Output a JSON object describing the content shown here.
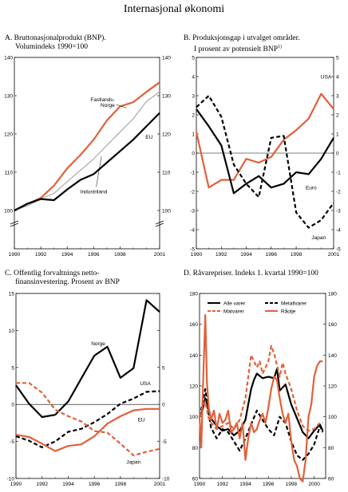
{
  "page_title": "Internasjonal økonomi",
  "chart_data": [
    {
      "id": "A",
      "type": "line",
      "title_lines": [
        "A.  Bruttonasjonalprodukt (BNP).",
        "Volumindeks 1990=100"
      ],
      "x_ticks": [
        "1990",
        "1992",
        "1994",
        "1996",
        "1998",
        "2001"
      ],
      "xlim": [
        1990,
        2001
      ],
      "ylim": [
        90,
        140
      ],
      "y_ticks": [
        "100",
        "110",
        "120",
        "130",
        "140"
      ],
      "axis_break": true,
      "series": [
        {
          "name": "Fastlands-Norge",
          "label_lines": [
            "Fastlands-",
            "Norge"
          ],
          "color": "#e2603a",
          "dash": "none",
          "width": 2.2,
          "x": [
            1990,
            1991,
            1992,
            1993,
            1994,
            1995,
            1996,
            1997,
            1998,
            1999,
            2000,
            2001
          ],
          "y": [
            100,
            101.7,
            103.3,
            106.5,
            111,
            114.5,
            118.5,
            123.5,
            127.2,
            128.3,
            131,
            133.5
          ]
        },
        {
          "name": "Industriland",
          "label_lines": [
            "Industriland"
          ],
          "color": "#999999",
          "dash": "none",
          "width": 1,
          "x": [
            1990,
            1991,
            1992,
            1993,
            1994,
            1995,
            1996,
            1997,
            1998,
            1999,
            2000,
            2001
          ],
          "y": [
            100,
            101.2,
            103,
            104.5,
            107.5,
            110.5,
            113.5,
            117,
            120.5,
            124,
            128.5,
            131
          ]
        },
        {
          "name": "EU",
          "label_lines": [
            "EU"
          ],
          "color": "#000000",
          "dash": "none",
          "width": 2.2,
          "x": [
            1990,
            1991,
            1992,
            1993,
            1994,
            1995,
            1996,
            1997,
            1998,
            1999,
            2000,
            2001
          ],
          "y": [
            100,
            101.8,
            103,
            102.7,
            105.5,
            108,
            109.5,
            112.5,
            115.5,
            118.5,
            122,
            125.5
          ]
        }
      ]
    },
    {
      "id": "B",
      "type": "line",
      "title_lines": [
        "B.  Produksjonsgap i utvalget områder.",
        "I prosent av potensielt BNP"
      ],
      "title_sup": "1)",
      "x_ticks": [
        "1990",
        "1992",
        "1994",
        "1996",
        "1998",
        "2001"
      ],
      "xlim": [
        1990,
        2001
      ],
      "ylim": [
        -5,
        5
      ],
      "y_ticks": [
        "-5",
        "-4",
        "-3",
        "-2",
        "-1",
        "0",
        "1",
        "2",
        "3",
        "4",
        "5"
      ],
      "series": [
        {
          "name": "USA",
          "label_lines": [
            "USA"
          ],
          "color": "#e2603a",
          "dash": "none",
          "width": 2.2,
          "x": [
            1990,
            1991,
            1992,
            1993,
            1994,
            1995,
            1996,
            1997,
            1998,
            1999,
            2000,
            2001
          ],
          "y": [
            1.1,
            -1.8,
            -1.4,
            -1.4,
            -0.3,
            -0.5,
            -0.2,
            0.7,
            1.2,
            1.8,
            3.1,
            2.3
          ]
        },
        {
          "name": "Euro",
          "label_lines": [
            "Euro"
          ],
          "color": "#000000",
          "dash": "none",
          "width": 2.2,
          "x": [
            1990,
            1991,
            1992,
            1993,
            1994,
            1995,
            1996,
            1997,
            1998,
            1999,
            2000,
            2001
          ],
          "y": [
            2.3,
            1.4,
            0.4,
            -2.1,
            -1.6,
            -1.2,
            -1.8,
            -1.6,
            -1.0,
            -1.1,
            -0.3,
            0.8
          ]
        },
        {
          "name": "Japan",
          "label_lines": [
            "Japan"
          ],
          "color": "#000000",
          "dash": "5,3",
          "width": 2.2,
          "x": [
            1990,
            1991,
            1992,
            1993,
            1994,
            1995,
            1996,
            1997,
            1998,
            1999,
            2000,
            2001
          ],
          "y": [
            2.4,
            3.0,
            1.9,
            -0.6,
            -1.6,
            -2.3,
            0.8,
            0.9,
            -3.1,
            -3.9,
            -3.5,
            -2.6
          ]
        }
      ]
    },
    {
      "id": "C",
      "type": "line",
      "title_lines": [
        "C.  Offentlig forvaltnings netto-",
        "finansinvestering. Prosent av BNP"
      ],
      "x_ticks": [
        "1990",
        "1992",
        "1994",
        "1996",
        "1998",
        "2001"
      ],
      "xlim": [
        1990,
        2001
      ],
      "ylim": [
        -10,
        15
      ],
      "y_ticks": [
        "-10",
        "-5",
        "0",
        "5",
        "10",
        "15"
      ],
      "y_ticks_right": [
        "-10",
        "-5",
        "0",
        "5"
      ],
      "series": [
        {
          "name": "Norge",
          "label_lines": [
            "Norge"
          ],
          "color": "#000000",
          "dash": "none",
          "width": 2.2,
          "x": [
            1990,
            1991,
            1992,
            1993,
            1994,
            1995,
            1996,
            1997,
            1998,
            1999,
            2000,
            2001
          ],
          "y": [
            2.6,
            0.1,
            -1.7,
            -1.4,
            0.4,
            3.5,
            6.6,
            7.8,
            3.6,
            4.9,
            14.1,
            12.5
          ]
        },
        {
          "name": "USA",
          "label_lines": [
            "USA"
          ],
          "color": "#000000",
          "dash": "5,3",
          "width": 2.2,
          "x": [
            1990,
            1991,
            1992,
            1993,
            1994,
            1995,
            1996,
            1997,
            1998,
            1999,
            2000,
            2001
          ],
          "y": [
            -4.3,
            -4.9,
            -5.8,
            -5.0,
            -3.7,
            -3.3,
            -2.4,
            -1.3,
            0.1,
            0.8,
            1.7,
            1.8
          ]
        },
        {
          "name": "EU",
          "label_lines": [
            "EU"
          ],
          "color": "#e2603a",
          "dash": "none",
          "width": 2.2,
          "x": [
            1990,
            1991,
            1992,
            1993,
            1994,
            1995,
            1996,
            1997,
            1998,
            1999,
            2000,
            2001
          ],
          "y": [
            -4.1,
            -4.4,
            -5.3,
            -6.3,
            -5.6,
            -5.4,
            -4.3,
            -2.6,
            -1.6,
            -0.8,
            -0.6,
            -0.6
          ]
        },
        {
          "name": "Japan",
          "label_lines": [
            "Japan"
          ],
          "color": "#e2603a",
          "dash": "5,3",
          "width": 2.2,
          "x": [
            1990,
            1991,
            1992,
            1993,
            1994,
            1995,
            1996,
            1997,
            1998,
            1999,
            2000,
            2001
          ],
          "y": [
            2.9,
            2.9,
            1.6,
            -0.7,
            -1.6,
            -2.3,
            -3.6,
            -3.8,
            -5.3,
            -6.9,
            -6.4,
            -6.0
          ]
        }
      ]
    },
    {
      "id": "D",
      "type": "line",
      "title_lines": [
        "D.  Råvarepriser. Indeks 1. kvartal 1990=100"
      ],
      "x_ticks": [
        "1990",
        "1992",
        "1994",
        "1996",
        "1998",
        "2000"
      ],
      "xlim": [
        1990,
        2001
      ],
      "ylim": [
        60,
        180
      ],
      "y_ticks": [
        "60",
        "80",
        "100",
        "120",
        "140",
        "160",
        "180"
      ],
      "legend": [
        "Alle varer",
        "Metallvarer",
        "Matvarer",
        "Råolje"
      ],
      "series": [
        {
          "name": "Alle varer",
          "color": "#000000",
          "dash": "none",
          "width": 2.2,
          "x": [
            1990.0,
            1990.25,
            1990.5,
            1990.75,
            1991.0,
            1991.5,
            1992.0,
            1992.5,
            1993.0,
            1993.5,
            1994.0,
            1994.25,
            1994.5,
            1994.75,
            1995.0,
            1995.5,
            1996.0,
            1996.5,
            1996.75,
            1997.0,
            1997.5,
            1998.0,
            1998.5,
            1999.0,
            1999.5,
            2000.0,
            2000.5,
            2000.75
          ],
          "y": [
            100,
            104,
            112,
            106,
            99,
            94,
            91,
            92,
            88,
            91,
            98,
            108,
            118,
            124,
            128,
            125,
            126,
            125,
            131,
            117,
            121,
            108,
            99,
            90,
            86,
            91,
            95,
            91
          ]
        },
        {
          "name": "Metallvarer",
          "color": "#000000",
          "dash": "5,3",
          "width": 2.2,
          "x": [
            1990.0,
            1990.25,
            1990.5,
            1990.75,
            1991.0,
            1991.5,
            1992.0,
            1992.5,
            1993.0,
            1993.5,
            1994.0,
            1994.5,
            1995.0,
            1995.5,
            1996.0,
            1996.5,
            1997.0,
            1997.5,
            1998.0,
            1998.5,
            1999.0,
            1999.5,
            2000.0,
            2000.5,
            2000.75
          ],
          "y": [
            100,
            108,
            118,
            104,
            93,
            86,
            92,
            90,
            84,
            78,
            86,
            95,
            104,
            98,
            92,
            88,
            100,
            96,
            84,
            75,
            72,
            76,
            82,
            94,
            90
          ]
        },
        {
          "name": "Matvarer",
          "color": "#e2603a",
          "dash": "5,3",
          "width": 2.2,
          "x": [
            1990.0,
            1990.25,
            1990.5,
            1990.75,
            1991.0,
            1991.5,
            1992.0,
            1992.5,
            1993.0,
            1993.5,
            1994.0,
            1994.5,
            1995.0,
            1995.25,
            1995.5,
            1996.0,
            1996.25,
            1996.5,
            1997.0,
            1997.25,
            1997.5,
            1998.0,
            1998.5,
            1999.0,
            1999.5,
            2000.0,
            2000.5,
            2000.75
          ],
          "y": [
            100,
            106,
            110,
            100,
            96,
            92,
            94,
            96,
            92,
            98,
            112,
            140,
            132,
            136,
            128,
            136,
            146,
            141,
            126,
            135,
            128,
            118,
            104,
            94,
            91,
            92,
            96,
            96
          ]
        },
        {
          "name": "Råolje",
          "color": "#e2603a",
          "dash": "none",
          "width": 2.2,
          "x": [
            1990.0,
            1990.15,
            1990.3,
            1990.5,
            1990.65,
            1990.8,
            1991.0,
            1991.25,
            1991.5,
            1991.75,
            1992.0,
            1992.25,
            1992.5,
            1992.75,
            1993.0,
            1993.25,
            1993.5,
            1993.75,
            1994.0,
            1994.25,
            1994.5,
            1994.75,
            1995.0,
            1995.25,
            1995.5,
            1995.75,
            1996.0,
            1996.25,
            1996.5,
            1996.75,
            1997.0,
            1997.25,
            1997.5,
            1997.75,
            1998.0,
            1998.25,
            1998.5,
            1998.75,
            1999.0,
            1999.25,
            1999.5,
            1999.75,
            2000.0,
            2000.25,
            2000.5,
            2000.75
          ],
          "y": [
            100,
            80,
            120,
            166,
            122,
            106,
            98,
            104,
            92,
            102,
            96,
            98,
            104,
            90,
            92,
            96,
            86,
            96,
            72,
            86,
            96,
            90,
            92,
            98,
            102,
            96,
            106,
            118,
            126,
            124,
            112,
            102,
            96,
            102,
            84,
            72,
            68,
            60,
            58,
            72,
            100,
            108,
            126,
            133,
            136,
            136
          ]
        }
      ]
    }
  ]
}
